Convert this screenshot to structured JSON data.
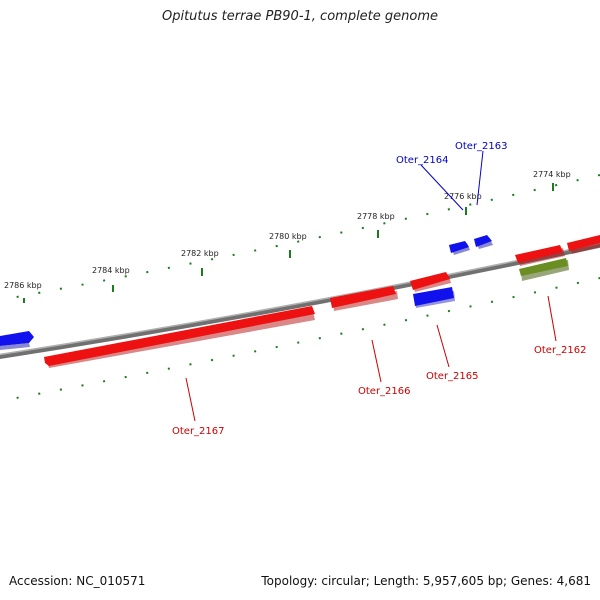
{
  "title": "Opitutus terrae PB90-1, complete genome",
  "accession_text": "Accession: NC_010571",
  "summary_text": "Topology: circular; Length: 5,957,605 bp; Genes: 4,681",
  "colors": {
    "backbone": "#8a8a8a",
    "tick": "#1e7b1e",
    "forward_gene": "#ee1111",
    "reverse_gene": "#1111ee",
    "rna_gene": "#6b8e23",
    "label_red": "#cc0000",
    "label_blue": "#0000cc"
  },
  "scale_labels": [
    "2774 kbp",
    "2776 kbp",
    "2778 kbp",
    "2780 kbp",
    "2782 kbp",
    "2784 kbp",
    "2786 kbp"
  ],
  "gene_labels": [
    {
      "text": "Oter_2163",
      "color": "blue"
    },
    {
      "text": "Oter_2164",
      "color": "blue"
    },
    {
      "text": "Oter_2162",
      "color": "red"
    },
    {
      "text": "Oter_2165",
      "color": "red"
    },
    {
      "text": "Oter_2166",
      "color": "red"
    },
    {
      "text": "Oter_2167",
      "color": "red"
    }
  ]
}
